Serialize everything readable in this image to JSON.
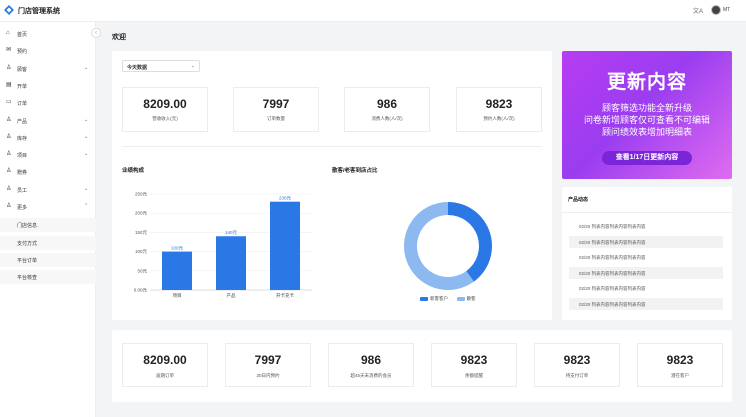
{
  "app": {
    "title": "门店管理系统",
    "user": "MT"
  },
  "sidebar": {
    "items": [
      {
        "label": "首页",
        "icon": "home-icon",
        "chev": ""
      },
      {
        "label": "预约",
        "icon": "inbox-icon",
        "chev": ""
      },
      {
        "label": "顾客",
        "icon": "user-icon",
        "chev": "⌄"
      },
      {
        "label": "开单",
        "icon": "doc-icon",
        "chev": ""
      },
      {
        "label": "订单",
        "icon": "list-icon",
        "chev": ""
      },
      {
        "label": "产品",
        "icon": "user-icon",
        "chev": "⌄"
      },
      {
        "label": "库存",
        "icon": "user-icon",
        "chev": "⌄"
      },
      {
        "label": "项目",
        "icon": "user-icon",
        "chev": "⌄"
      },
      {
        "label": "赠券",
        "icon": "user-icon",
        "chev": ""
      },
      {
        "label": "员工",
        "icon": "user-icon",
        "chev": "⌄"
      },
      {
        "label": "更多",
        "icon": "user-icon",
        "chev": "⌃"
      }
    ],
    "sub_items": [
      "门店信息",
      "支付方式",
      "平台订单",
      "平台核查"
    ]
  },
  "main": {
    "page_title": "欢迎",
    "range_select": "今天数据",
    "stats": [
      {
        "value": "8209.00",
        "label": "营收收入(元)"
      },
      {
        "value": "7997",
        "label": "订单数量"
      },
      {
        "value": "986",
        "label": "消费人数(人/次)"
      },
      {
        "value": "9823",
        "label": "预约人数(人/次)"
      }
    ],
    "bar_title": "业绩构成",
    "donut_title": "散客/老客到店占比",
    "bottom_stats": [
      {
        "value": "8209.00",
        "label": "逾期订单"
      },
      {
        "value": "7997",
        "label": "30日内预约"
      },
      {
        "value": "986",
        "label": "超45天未消费的会员"
      },
      {
        "value": "9823",
        "label": "余额提醒"
      },
      {
        "value": "9823",
        "label": "待支付订单"
      },
      {
        "value": "9823",
        "label": "潜在客户"
      }
    ]
  },
  "promo": {
    "title": "更新内容",
    "lines": [
      "顾客筛选功能全新升级",
      "问卷新增顾客仅可查看不可编辑",
      "顾问绩效表增加明细表"
    ],
    "button": "查看1/17日更新内容"
  },
  "news": {
    "title": "产品动态",
    "items": [
      "02/20 列表内容列表内容列表内容",
      "02/20 列表内容列表内容列表内容",
      "02/20 列表内容列表内容列表内容",
      "02/20 列表内容列表内容列表内容",
      "02/20 列表内容列表内容列表内容",
      "02/20 列表内容列表内容列表内容"
    ]
  },
  "chart_data": [
    {
      "type": "bar",
      "title": "业绩构成",
      "categories": [
        "项目",
        "产品",
        "开卡充卡"
      ],
      "values": [
        100,
        140,
        230
      ],
      "value_labels": [
        "100元",
        "140元",
        "230元"
      ],
      "ylim": [
        0,
        250
      ],
      "y_ticks": [
        "0.00元",
        "50元",
        "100元",
        "150元",
        "200元",
        "250元"
      ],
      "color": "#2a78e6"
    },
    {
      "type": "pie",
      "title": "散客/老客到店占比",
      "variant": "donut",
      "series": [
        {
          "name": "新客客户",
          "value": 40,
          "color": "#2a78e6"
        },
        {
          "name": "散客",
          "value": 60,
          "color": "#8cb9f0"
        }
      ]
    }
  ]
}
